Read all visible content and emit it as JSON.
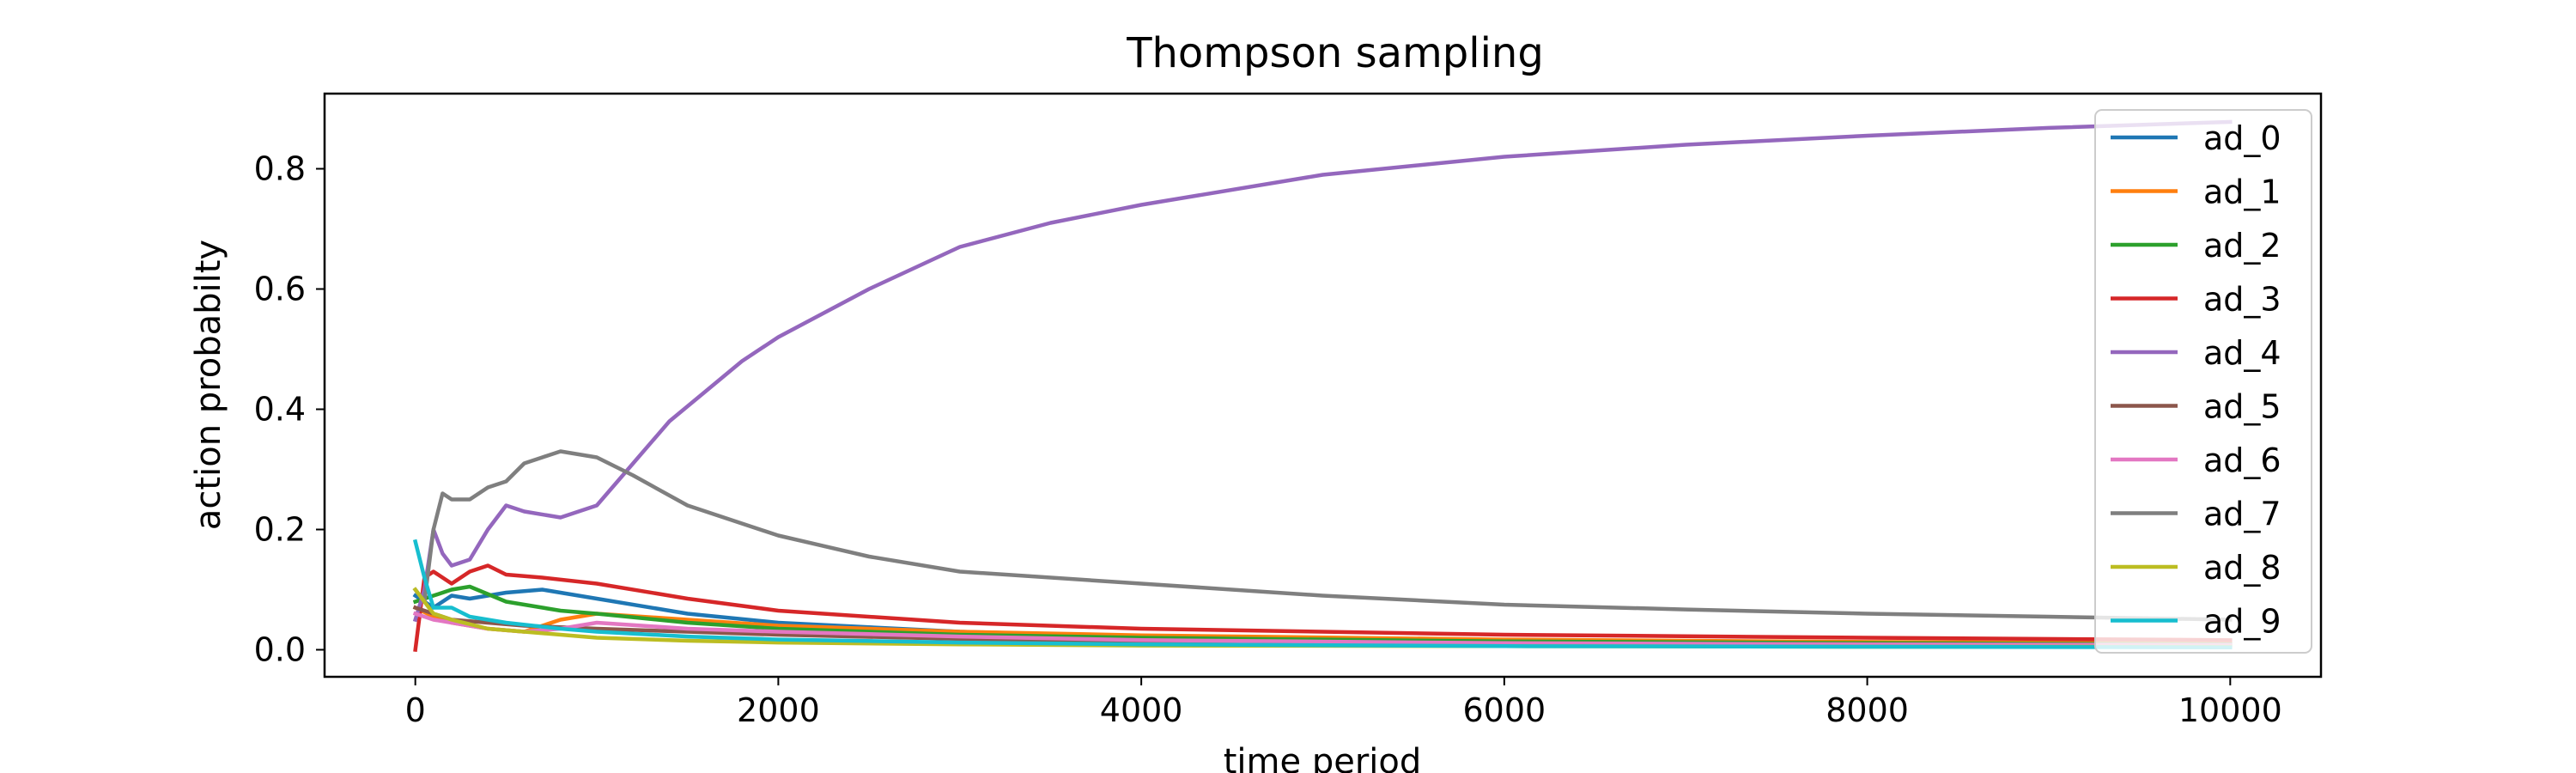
{
  "chart_data": {
    "type": "line",
    "title": "Thompson sampling",
    "xlabel": "time period",
    "ylabel": "action probabilty",
    "xlim": [
      -500,
      10500
    ],
    "ylim": [
      -0.045,
      0.925
    ],
    "xticks": [
      0,
      2000,
      4000,
      6000,
      8000,
      10000
    ],
    "xtick_labels": [
      "0",
      "2000",
      "4000",
      "6000",
      "8000",
      "10000"
    ],
    "yticks": [
      0.0,
      0.2,
      0.4,
      0.6,
      0.8
    ],
    "ytick_labels": [
      "0.0",
      "0.2",
      "0.4",
      "0.6",
      "0.8"
    ],
    "grid": false,
    "legend_position": "top-right",
    "series": [
      {
        "name": "ad_0",
        "color": "#1f77b4",
        "x": [
          0,
          100,
          200,
          300,
          500,
          700,
          1000,
          1500,
          2000,
          3000,
          4000,
          6000,
          8000,
          10000
        ],
        "y": [
          0.09,
          0.07,
          0.09,
          0.085,
          0.095,
          0.1,
          0.085,
          0.06,
          0.045,
          0.03,
          0.022,
          0.015,
          0.012,
          0.01
        ]
      },
      {
        "name": "ad_1",
        "color": "#ff7f0e",
        "x": [
          0,
          100,
          200,
          400,
          600,
          800,
          1000,
          1500,
          2000,
          3000,
          4000,
          6000,
          8000,
          10000
        ],
        "y": [
          0.07,
          0.055,
          0.045,
          0.035,
          0.03,
          0.05,
          0.06,
          0.05,
          0.04,
          0.03,
          0.024,
          0.017,
          0.013,
          0.011
        ]
      },
      {
        "name": "ad_2",
        "color": "#2ca02c",
        "x": [
          0,
          100,
          200,
          300,
          500,
          800,
          1000,
          1500,
          2000,
          3000,
          4000,
          6000,
          8000,
          10000
        ],
        "y": [
          0.08,
          0.09,
          0.1,
          0.105,
          0.08,
          0.065,
          0.06,
          0.045,
          0.035,
          0.025,
          0.02,
          0.014,
          0.011,
          0.009
        ]
      },
      {
        "name": "ad_3",
        "color": "#d62728",
        "x": [
          0,
          50,
          100,
          200,
          300,
          400,
          500,
          700,
          1000,
          1500,
          2000,
          3000,
          4000,
          6000,
          8000,
          10000
        ],
        "y": [
          0.0,
          0.12,
          0.13,
          0.11,
          0.13,
          0.14,
          0.125,
          0.12,
          0.11,
          0.085,
          0.065,
          0.045,
          0.035,
          0.025,
          0.02,
          0.016
        ]
      },
      {
        "name": "ad_4",
        "color": "#9467bd",
        "x": [
          0,
          50,
          100,
          150,
          200,
          300,
          400,
          500,
          600,
          800,
          1000,
          1200,
          1400,
          1600,
          1800,
          2000,
          2500,
          3000,
          3500,
          4000,
          5000,
          6000,
          7000,
          8000,
          9000,
          10000
        ],
        "y": [
          0.05,
          0.1,
          0.2,
          0.16,
          0.14,
          0.15,
          0.2,
          0.24,
          0.23,
          0.22,
          0.24,
          0.31,
          0.38,
          0.43,
          0.48,
          0.52,
          0.6,
          0.67,
          0.71,
          0.74,
          0.79,
          0.82,
          0.84,
          0.855,
          0.868,
          0.878
        ]
      },
      {
        "name": "ad_5",
        "color": "#8c564b",
        "x": [
          0,
          100,
          200,
          400,
          600,
          1000,
          1500,
          2000,
          3000,
          4000,
          6000,
          8000,
          10000
        ],
        "y": [
          0.07,
          0.06,
          0.05,
          0.045,
          0.04,
          0.035,
          0.03,
          0.025,
          0.018,
          0.014,
          0.01,
          0.008,
          0.007
        ]
      },
      {
        "name": "ad_6",
        "color": "#e377c2",
        "x": [
          0,
          100,
          200,
          400,
          600,
          800,
          1000,
          1500,
          2000,
          3000,
          4000,
          6000,
          8000,
          10000
        ],
        "y": [
          0.06,
          0.05,
          0.045,
          0.035,
          0.03,
          0.035,
          0.045,
          0.035,
          0.03,
          0.022,
          0.016,
          0.011,
          0.009,
          0.008
        ]
      },
      {
        "name": "ad_7",
        "color": "#7f7f7f",
        "x": [
          0,
          50,
          100,
          150,
          200,
          300,
          400,
          500,
          600,
          700,
          800,
          1000,
          1200,
          1500,
          2000,
          2500,
          3000,
          4000,
          5000,
          6000,
          7000,
          8000,
          9000,
          10000
        ],
        "y": [
          0.1,
          0.08,
          0.2,
          0.26,
          0.25,
          0.25,
          0.27,
          0.28,
          0.31,
          0.32,
          0.33,
          0.32,
          0.29,
          0.24,
          0.19,
          0.155,
          0.13,
          0.11,
          0.09,
          0.075,
          0.067,
          0.06,
          0.055,
          0.05
        ]
      },
      {
        "name": "ad_8",
        "color": "#bcbd22",
        "x": [
          0,
          100,
          200,
          400,
          600,
          1000,
          1500,
          2000,
          3000,
          4000,
          6000,
          8000,
          10000
        ],
        "y": [
          0.1,
          0.06,
          0.05,
          0.035,
          0.03,
          0.02,
          0.015,
          0.012,
          0.009,
          0.007,
          0.006,
          0.005,
          0.005
        ]
      },
      {
        "name": "ad_9",
        "color": "#17becf",
        "x": [
          0,
          50,
          100,
          200,
          300,
          500,
          800,
          1000,
          1500,
          2000,
          3000,
          4000,
          6000,
          8000,
          10000
        ],
        "y": [
          0.18,
          0.12,
          0.07,
          0.07,
          0.055,
          0.045,
          0.035,
          0.03,
          0.022,
          0.017,
          0.012,
          0.009,
          0.006,
          0.005,
          0.004
        ]
      }
    ]
  }
}
